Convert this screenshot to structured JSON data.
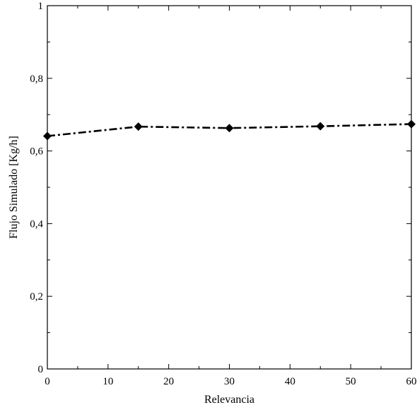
{
  "chart_data": {
    "type": "line",
    "xlabel": "Relevancia",
    "ylabel": "Flujo Simulado  [Kg/h]",
    "xlim": [
      0,
      60
    ],
    "ylim": [
      0,
      1
    ],
    "x_ticks": [
      0,
      10,
      20,
      30,
      40,
      50,
      60
    ],
    "x_tick_labels": [
      "0",
      "10",
      "20",
      "30",
      "40",
      "50",
      "60"
    ],
    "y_ticks": [
      0,
      0.2,
      0.4,
      0.6,
      0.8,
      1
    ],
    "y_tick_labels": [
      "0",
      "0,2",
      "0,4",
      "0,6",
      "0,8",
      "1"
    ],
    "grid": false,
    "series": [
      {
        "x": [
          0,
          15,
          30,
          45,
          60
        ],
        "y": [
          0.641,
          0.667,
          0.663,
          0.668,
          0.674
        ],
        "color": "#000000",
        "line_style": "dash-dot",
        "marker": "diamond"
      }
    ]
  }
}
